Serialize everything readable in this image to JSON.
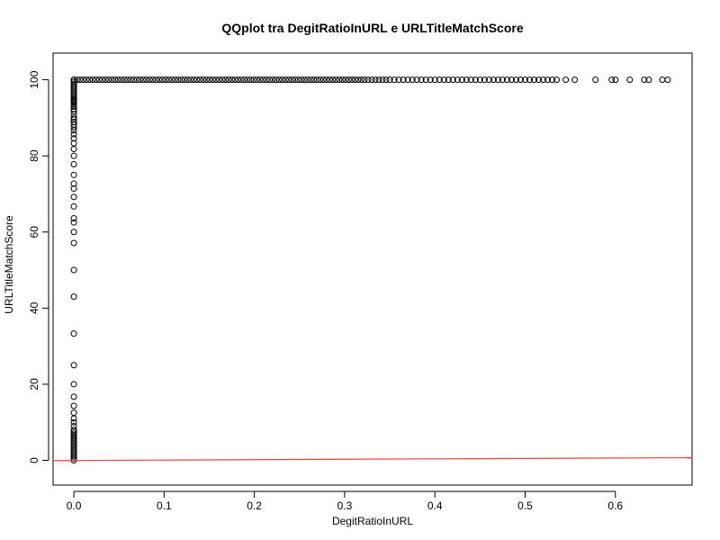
{
  "chart_data": {
    "type": "scatter",
    "title": "QQplot tra DegitRatioInURL e URLTitleMatchScore",
    "xlabel": "DegitRatioInURL",
    "ylabel": "URLTitleMatchScore",
    "xlim": [
      -0.023,
      0.685
    ],
    "ylim": [
      -6.5,
      107
    ],
    "xticks": [
      0.0,
      0.1,
      0.2,
      0.3,
      0.4,
      0.5,
      0.6
    ],
    "xtick_labels": [
      "0.0",
      "0.1",
      "0.2",
      "0.3",
      "0.4",
      "0.5",
      "0.6"
    ],
    "yticks": [
      0,
      20,
      40,
      60,
      80,
      100
    ],
    "ytick_labels": [
      "0",
      "20",
      "40",
      "60",
      "80",
      "100"
    ],
    "point_color": "#000000",
    "reference_line": {
      "color": "#ff3b3b",
      "x": [
        -0.023,
        0.685
      ],
      "y": [
        -0.05,
        0.7
      ]
    },
    "series": [
      {
        "values_at_x0": [
          0,
          0.5,
          1,
          1.5,
          2,
          2.5,
          3,
          3.5,
          4,
          4.5,
          5,
          5.5,
          6,
          6.5,
          7,
          7.5,
          8,
          9,
          10,
          11,
          12.5,
          14.3,
          16.7,
          20,
          25,
          33.3,
          43,
          50,
          57.1,
          60,
          62.5,
          63.6,
          66.7,
          69.2,
          71.4,
          72.7,
          75,
          77.8,
          80,
          81.8,
          83.3,
          84.6,
          85.7,
          86.7,
          87.5,
          88.2,
          88.9,
          89.5,
          90,
          90.9,
          91.7,
          92.3,
          92.9,
          93.3,
          93.8,
          94.1,
          94.4,
          94.7,
          95,
          95.5,
          96,
          96.5,
          97,
          97.5,
          98,
          98.5,
          99,
          99.5,
          100
        ],
        "x_at_y100_dense_max": 0.32,
        "x_at_y100_sparse": [
          0.322,
          0.326,
          0.33,
          0.334,
          0.338,
          0.342,
          0.346,
          0.35,
          0.355,
          0.36,
          0.365,
          0.37,
          0.375,
          0.38,
          0.385,
          0.39,
          0.395,
          0.4,
          0.405,
          0.41,
          0.415,
          0.42,
          0.425,
          0.43,
          0.435,
          0.44,
          0.445,
          0.45,
          0.455,
          0.46,
          0.465,
          0.47,
          0.475,
          0.48,
          0.485,
          0.49,
          0.495,
          0.5,
          0.505,
          0.51,
          0.515,
          0.52,
          0.525,
          0.53,
          0.535,
          0.545,
          0.555,
          0.578,
          0.596,
          0.6,
          0.616,
          0.632,
          0.637,
          0.652,
          0.658
        ]
      }
    ]
  }
}
